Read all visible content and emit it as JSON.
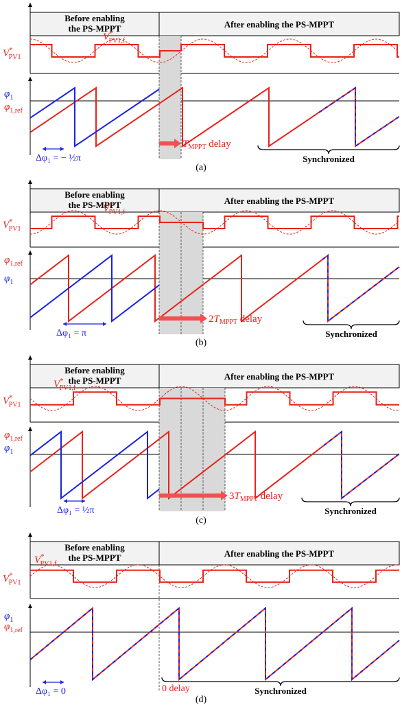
{
  "colors": {
    "red": "#e8221b",
    "blue": "#1a22e0",
    "shade": "#d9d9d9",
    "header_bg": "#f2f2f2",
    "arrow": "#f05050"
  },
  "labels": {
    "before_line1": "Before enabling",
    "before_line2": "the PS-MPPT",
    "after": "After enabling the PS-MPPT",
    "vpv_main": "V",
    "vpv_sup": "*",
    "vpv_sub": "PV1",
    "vf_main": "V",
    "vf_sup": "*",
    "vf_sub": "PV1,f",
    "phi": "φ",
    "phi_sub": "1",
    "phi_ref_sub": "1,ref",
    "synchronized": "Synchronized",
    "delay_word": "delay",
    "mppt_sub": "MPPT",
    "T": "T"
  },
  "panels": [
    {
      "id": "a",
      "caption": "(a)",
      "delta_text": "Δφ₁ = − ½π",
      "delay_prefix": "",
      "delay_text": "T",
      "shade_slots": 1
    },
    {
      "id": "b",
      "caption": "(b)",
      "delta_text": "Δφ₁ = π",
      "delay_prefix": "2",
      "delay_text": "T",
      "shade_slots": 2
    },
    {
      "id": "c",
      "caption": "(c)",
      "delta_text": "Δφ₁ = ½π",
      "delay_prefix": "3",
      "delay_text": "T",
      "shade_slots": 3
    },
    {
      "id": "d",
      "caption": "(d)",
      "delta_text": "Δφ₁ = 0",
      "delay_prefix": "0 delay",
      "delay_text": "",
      "shade_slots": 0
    }
  ]
}
